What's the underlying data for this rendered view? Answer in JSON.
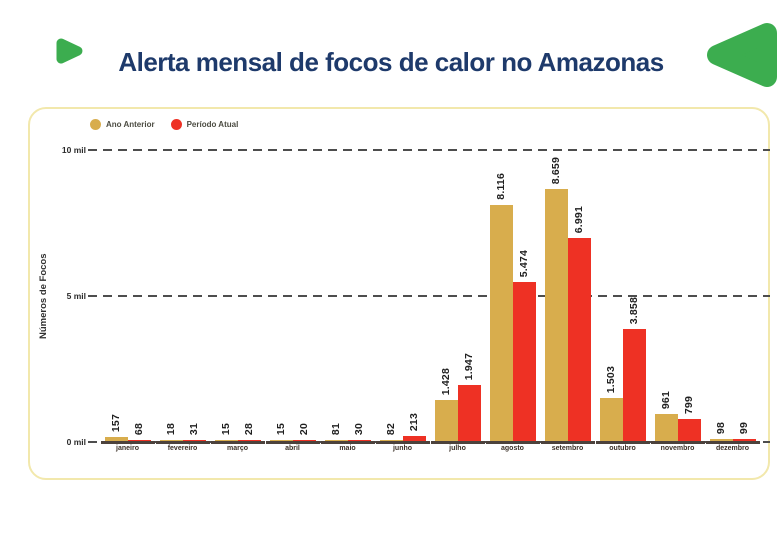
{
  "header": {
    "title": "Alerta mensal de focos de calor no Amazonas",
    "title_color": "#1E3A6B",
    "accent_green": "#3CAD4F"
  },
  "chart_data": {
    "type": "bar",
    "title": "Alerta mensal de focos de calor no Amazonas",
    "ylabel": "Números de Focos",
    "ylim": [
      0,
      10000
    ],
    "grid": "horizontal-dashed",
    "legend_position": "top-left",
    "categories": [
      "janeiro",
      "fevereiro",
      "março",
      "abril",
      "maio",
      "junho",
      "julho",
      "agosto",
      "setembro",
      "outubro",
      "novembro",
      "dezembro"
    ],
    "series": [
      {
        "name": "Ano Anterior",
        "color": "#D8AD4D",
        "values": [
          157,
          18,
          15,
          15,
          81,
          82,
          1428,
          8116,
          8659,
          1503,
          961,
          98
        ],
        "labels": [
          "157",
          "18",
          "15",
          "15",
          "81",
          "82",
          "1.428",
          "8.116",
          "8.659",
          "1.503",
          "961",
          "98"
        ]
      },
      {
        "name": "Período Atual",
        "color": "#EE3124",
        "values": [
          68,
          31,
          28,
          20,
          30,
          213,
          1947,
          5474,
          6991,
          3858,
          799,
          99
        ],
        "labels": [
          "68",
          "31",
          "28",
          "20",
          "30",
          "213",
          "1.947",
          "5.474",
          "6.991",
          "3.858",
          "799",
          "99"
        ]
      }
    ],
    "yticks": [
      {
        "label": "10 mil",
        "value": 10000
      },
      {
        "label": "5 mil",
        "value": 5000
      },
      {
        "label": "0 mil",
        "value": 0
      }
    ]
  }
}
